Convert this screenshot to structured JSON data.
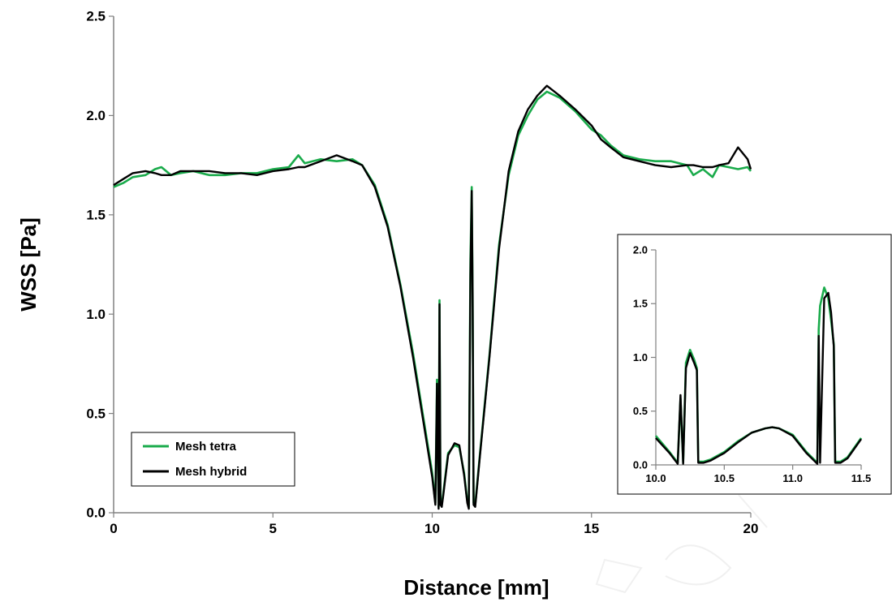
{
  "chart_data": [
    {
      "type": "line",
      "xlabel": "Distance [mm]",
      "ylabel": "WSS  [Pa]",
      "xlim": [
        0,
        20
      ],
      "ylim": [
        0,
        2.5
      ],
      "x_ticks": [
        "0",
        "5",
        "10",
        "15",
        "20"
      ],
      "y_ticks": [
        "0.0",
        "0.5",
        "1.0",
        "1.5",
        "2.0",
        "2.5"
      ],
      "legend": {
        "placement": "bottom-left",
        "entries": [
          "Mesh tetra",
          "Mesh hybrid"
        ]
      },
      "grid": false,
      "series": [
        {
          "name": "Mesh tetra",
          "color": "#1aab4b",
          "x": [
            0,
            0.3,
            0.6,
            1.0,
            1.3,
            1.5,
            1.8,
            2.1,
            2.5,
            3.0,
            3.5,
            4.0,
            4.5,
            5.0,
            5.5,
            5.8,
            6.0,
            6.5,
            7.0,
            7.5,
            7.8,
            8.2,
            8.6,
            9.0,
            9.4,
            9.8,
            10.0,
            10.1,
            10.15,
            10.2,
            10.23,
            10.26,
            10.3,
            10.35,
            10.5,
            10.7,
            10.85,
            11.0,
            11.1,
            11.15,
            11.2,
            11.24,
            11.27,
            11.3,
            11.35,
            11.5,
            11.8,
            12.1,
            12.4,
            12.7,
            13.0,
            13.3,
            13.6,
            14.0,
            14.5,
            15.0,
            15.3,
            15.6,
            16.0,
            16.5,
            17.0,
            17.5,
            18.0,
            18.2,
            18.5,
            18.8,
            19.0,
            19.3,
            19.6,
            19.9,
            20.0
          ],
          "values": [
            1.64,
            1.66,
            1.69,
            1.7,
            1.73,
            1.74,
            1.7,
            1.71,
            1.72,
            1.7,
            1.7,
            1.71,
            1.71,
            1.73,
            1.74,
            1.8,
            1.76,
            1.78,
            1.77,
            1.78,
            1.75,
            1.65,
            1.45,
            1.15,
            0.8,
            0.4,
            0.2,
            0.05,
            0.67,
            0.03,
            1.07,
            0.05,
            0.04,
            0.1,
            0.3,
            0.34,
            0.33,
            0.2,
            0.06,
            0.03,
            1.27,
            1.64,
            1.1,
            0.05,
            0.04,
            0.3,
            0.8,
            1.35,
            1.7,
            1.9,
            2.0,
            2.08,
            2.12,
            2.09,
            2.02,
            1.93,
            1.9,
            1.85,
            1.8,
            1.78,
            1.77,
            1.77,
            1.75,
            1.7,
            1.73,
            1.69,
            1.75,
            1.74,
            1.73,
            1.74,
            1.72
          ]
        },
        {
          "name": "Mesh hybrid",
          "color": "#000000",
          "x": [
            0,
            0.3,
            0.6,
            1.0,
            1.3,
            1.5,
            1.8,
            2.1,
            2.5,
            3.0,
            3.5,
            4.0,
            4.5,
            5.0,
            5.5,
            5.8,
            6.0,
            6.5,
            7.0,
            7.5,
            7.8,
            8.2,
            8.6,
            9.0,
            9.4,
            9.8,
            10.0,
            10.1,
            10.15,
            10.2,
            10.23,
            10.26,
            10.3,
            10.35,
            10.5,
            10.7,
            10.85,
            11.0,
            11.1,
            11.15,
            11.2,
            11.24,
            11.27,
            11.3,
            11.35,
            11.5,
            11.8,
            12.1,
            12.4,
            12.7,
            13.0,
            13.3,
            13.6,
            14.0,
            14.5,
            15.0,
            15.3,
            15.6,
            16.0,
            16.5,
            17.0,
            17.5,
            18.0,
            18.2,
            18.5,
            18.8,
            19.0,
            19.3,
            19.6,
            19.9,
            20.0
          ],
          "values": [
            1.65,
            1.68,
            1.71,
            1.72,
            1.71,
            1.7,
            1.7,
            1.72,
            1.72,
            1.72,
            1.71,
            1.71,
            1.7,
            1.72,
            1.73,
            1.74,
            1.74,
            1.77,
            1.8,
            1.77,
            1.75,
            1.64,
            1.44,
            1.14,
            0.78,
            0.38,
            0.18,
            0.04,
            0.65,
            0.02,
            1.05,
            0.04,
            0.03,
            0.09,
            0.29,
            0.35,
            0.34,
            0.19,
            0.05,
            0.02,
            1.2,
            1.62,
            1.1,
            0.04,
            0.03,
            0.29,
            0.79,
            1.33,
            1.72,
            1.92,
            2.03,
            2.1,
            2.15,
            2.1,
            2.03,
            1.95,
            1.88,
            1.84,
            1.79,
            1.77,
            1.75,
            1.74,
            1.75,
            1.75,
            1.74,
            1.74,
            1.75,
            1.76,
            1.84,
            1.78,
            1.73
          ]
        }
      ]
    },
    {
      "type": "line",
      "xlabel": "",
      "ylabel": "",
      "xlim": [
        10.0,
        11.5
      ],
      "ylim": [
        0,
        2.0
      ],
      "x_ticks": [
        "10.0",
        "10.5",
        "11.0",
        "11.5"
      ],
      "y_ticks": [
        "0.0",
        "0.5",
        "1.0",
        "1.5",
        "2.0"
      ],
      "grid": false,
      "series": [
        {
          "name": "Mesh tetra",
          "color": "#1aab4b",
          "x": [
            10.0,
            10.1,
            10.16,
            10.18,
            10.2,
            10.22,
            10.25,
            10.28,
            10.3,
            10.31,
            10.35,
            10.4,
            10.5,
            10.6,
            10.7,
            10.8,
            10.85,
            10.9,
            11.0,
            11.1,
            11.18,
            11.19,
            11.2,
            11.23,
            11.26,
            11.28,
            11.3,
            11.31,
            11.35,
            11.4,
            11.5
          ],
          "values": [
            0.27,
            0.12,
            0.02,
            0.62,
            0.02,
            0.95,
            1.07,
            0.98,
            0.9,
            0.03,
            0.03,
            0.05,
            0.12,
            0.22,
            0.3,
            0.34,
            0.35,
            0.34,
            0.28,
            0.12,
            0.02,
            1.26,
            1.48,
            1.65,
            1.55,
            1.35,
            1.12,
            0.03,
            0.03,
            0.07,
            0.25
          ]
        },
        {
          "name": "Mesh hybrid",
          "color": "#000000",
          "x": [
            10.0,
            10.1,
            10.16,
            10.18,
            10.2,
            10.22,
            10.25,
            10.28,
            10.3,
            10.31,
            10.35,
            10.4,
            10.5,
            10.6,
            10.7,
            10.8,
            10.85,
            10.9,
            11.0,
            11.1,
            11.18,
            11.19,
            11.2,
            11.23,
            11.26,
            11.28,
            11.3,
            11.31,
            11.35,
            11.4,
            11.5
          ],
          "values": [
            0.25,
            0.11,
            0.01,
            0.65,
            0.01,
            0.9,
            1.04,
            0.95,
            0.88,
            0.02,
            0.02,
            0.04,
            0.11,
            0.21,
            0.3,
            0.34,
            0.35,
            0.34,
            0.27,
            0.11,
            0.01,
            1.2,
            0.02,
            1.55,
            1.6,
            1.42,
            1.1,
            0.02,
            0.02,
            0.06,
            0.24
          ]
        }
      ]
    }
  ]
}
